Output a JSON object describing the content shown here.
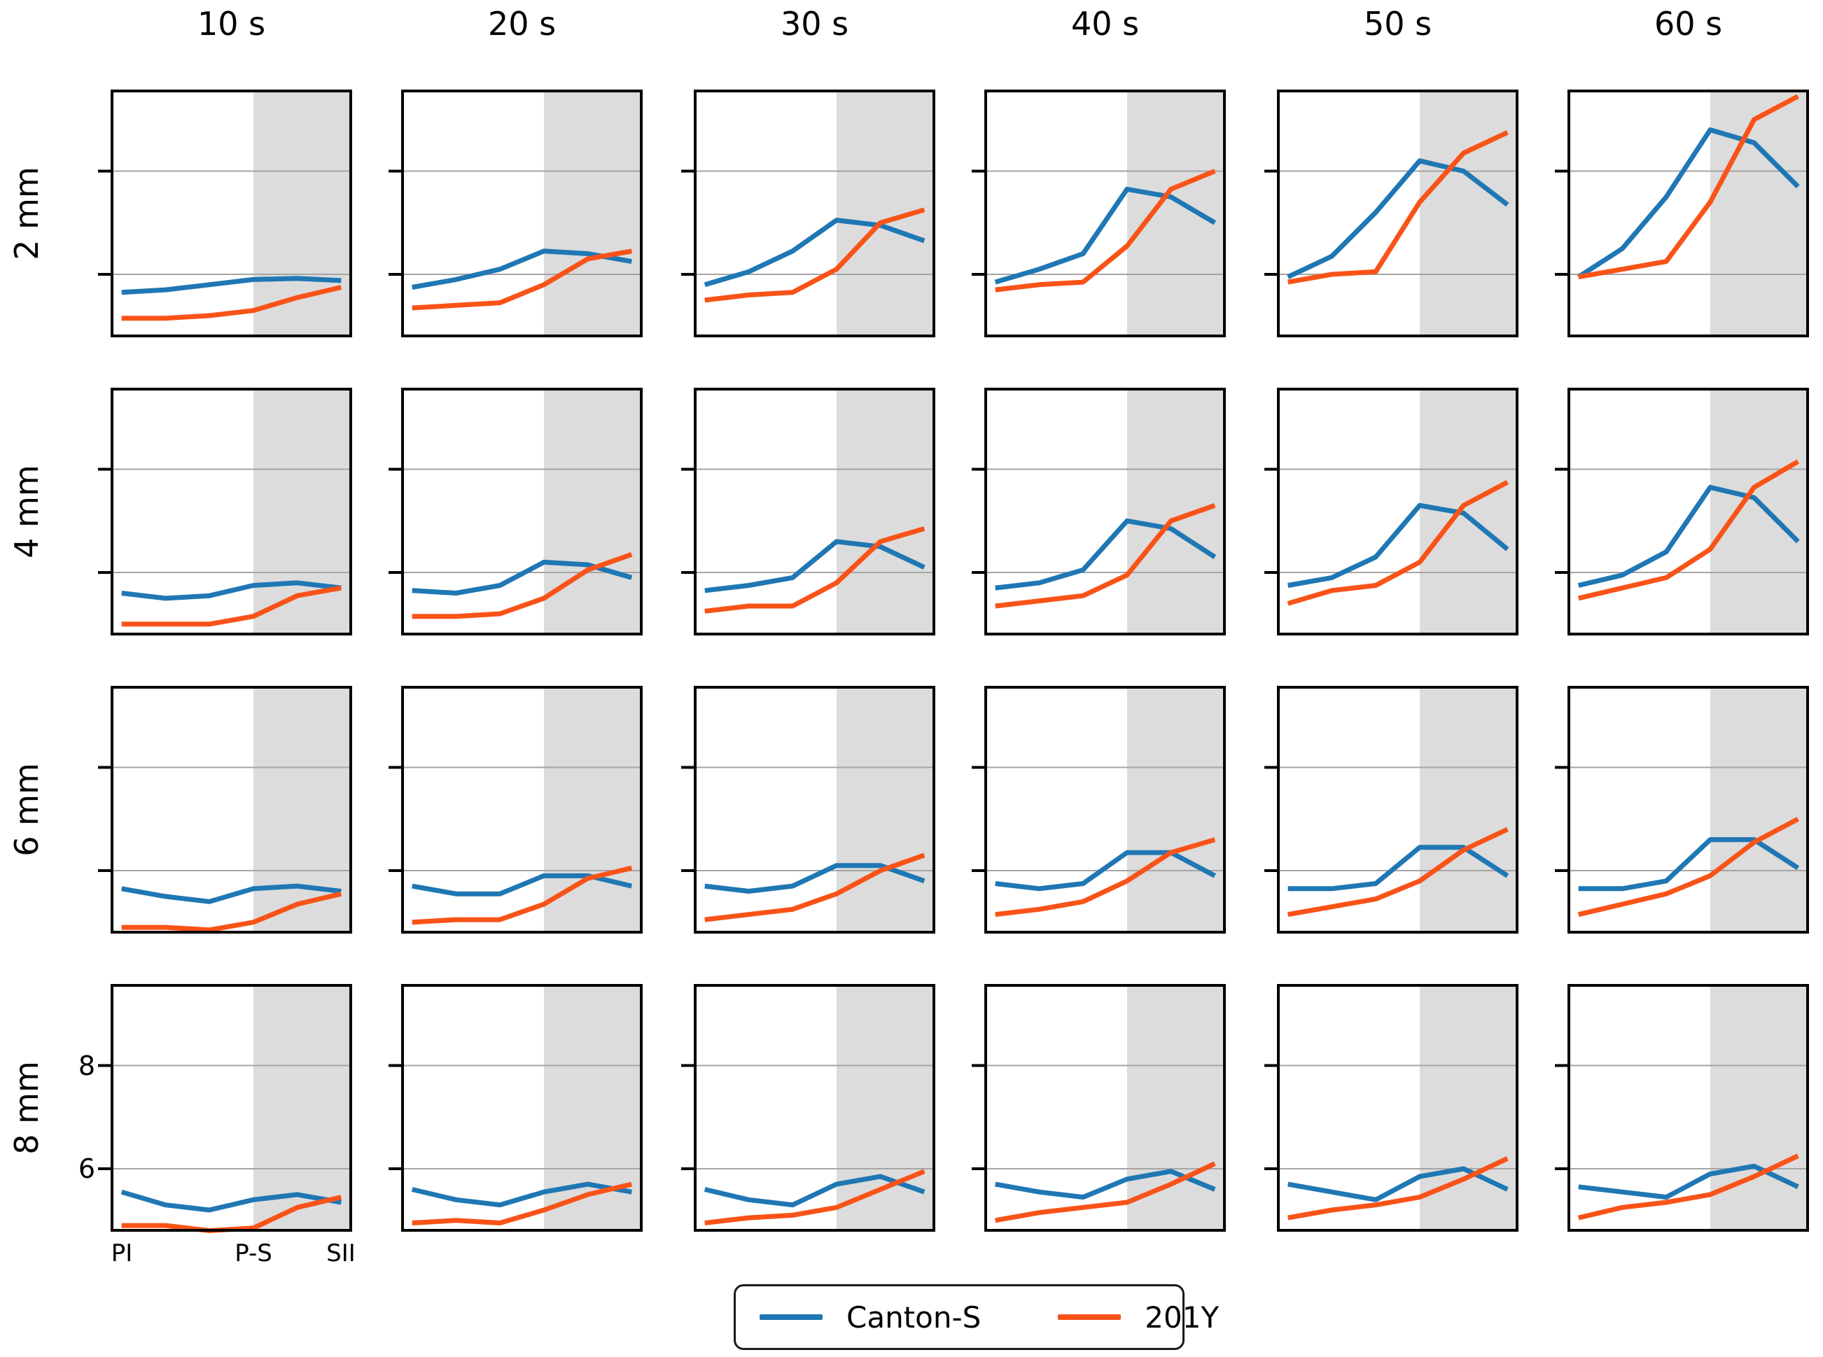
{
  "colors": {
    "canton_s": "#1f77b4",
    "y201": "#f95318",
    "shade": "#dcdcdc",
    "grid": "#a5a5a5",
    "spine": "#000000"
  },
  "legend": {
    "entries": [
      {
        "label": "Canton-S",
        "color": "#1f77b4"
      },
      {
        "label": "201Y",
        "color": "#f95318"
      }
    ]
  },
  "chart_data": {
    "type": "line",
    "facet_col_labels": [
      "10 s",
      "20 s",
      "30 s",
      "40 s",
      "50 s",
      "60 s"
    ],
    "facet_row_labels": [
      "2 mm",
      "4 mm",
      "6 mm",
      "8 mm"
    ],
    "x": [
      0,
      1,
      2,
      3,
      4,
      5
    ],
    "xlim": [
      -0.25,
      5.25
    ],
    "ylim": [
      4.78,
      9.58
    ],
    "xtick_positions": [
      0,
      3,
      5
    ],
    "xtick_labels": [
      "PI",
      "P-S",
      "SII"
    ],
    "ytick_values": [
      8,
      6
    ],
    "ytick_labels": [
      "8",
      "6"
    ],
    "shade_x": [
      3,
      5.25
    ],
    "grid": "horizontal",
    "legend_position": "bottom-center",
    "series_names": [
      "Canton-S",
      "201Y"
    ],
    "subplots": [
      {
        "row": "2 mm",
        "col": "10 s",
        "row_index": 0,
        "col_index": 0,
        "series": [
          {
            "name": "Canton-S",
            "values": [
              5.65,
              5.7,
              5.8,
              5.9,
              5.92,
              5.88
            ]
          },
          {
            "name": "201Y",
            "values": [
              5.15,
              5.15,
              5.2,
              5.3,
              5.55,
              5.75
            ]
          }
        ]
      },
      {
        "row": "2 mm",
        "col": "20 s",
        "row_index": 0,
        "col_index": 1,
        "series": [
          {
            "name": "Canton-S",
            "values": [
              5.75,
              5.9,
              6.1,
              6.45,
              6.4,
              6.25
            ]
          },
          {
            "name": "201Y",
            "values": [
              5.35,
              5.4,
              5.45,
              5.8,
              6.3,
              6.45
            ]
          }
        ]
      },
      {
        "row": "2 mm",
        "col": "30 s",
        "row_index": 0,
        "col_index": 2,
        "series": [
          {
            "name": "Canton-S",
            "values": [
              5.8,
              6.05,
              6.45,
              7.05,
              6.95,
              6.65
            ]
          },
          {
            "name": "201Y",
            "values": [
              5.5,
              5.6,
              5.65,
              6.1,
              7.0,
              7.25
            ]
          }
        ]
      },
      {
        "row": "2 mm",
        "col": "40 s",
        "row_index": 0,
        "col_index": 3,
        "series": [
          {
            "name": "Canton-S",
            "values": [
              5.85,
              6.1,
              6.4,
              7.65,
              7.5,
              7.0
            ]
          },
          {
            "name": "201Y",
            "values": [
              5.7,
              5.8,
              5.85,
              6.55,
              7.65,
              8.0
            ]
          }
        ]
      },
      {
        "row": "2 mm",
        "col": "50 s",
        "row_index": 0,
        "col_index": 4,
        "series": [
          {
            "name": "Canton-S",
            "values": [
              5.95,
              6.35,
              7.2,
              8.2,
              8.0,
              7.35
            ]
          },
          {
            "name": "201Y",
            "values": [
              5.85,
              6.0,
              6.05,
              7.4,
              8.35,
              8.75
            ]
          }
        ]
      },
      {
        "row": "2 mm",
        "col": "60 s",
        "row_index": 0,
        "col_index": 5,
        "series": [
          {
            "name": "Canton-S",
            "values": [
              5.95,
              6.5,
              7.5,
              8.8,
              8.55,
              7.7
            ]
          },
          {
            "name": "201Y",
            "values": [
              5.95,
              6.1,
              6.25,
              7.4,
              9.0,
              9.45
            ]
          }
        ]
      },
      {
        "row": "4 mm",
        "col": "10 s",
        "row_index": 1,
        "col_index": 0,
        "series": [
          {
            "name": "Canton-S",
            "values": [
              5.6,
              5.5,
              5.55,
              5.75,
              5.8,
              5.7
            ]
          },
          {
            "name": "201Y",
            "values": [
              5.0,
              5.0,
              5.0,
              5.15,
              5.55,
              5.7
            ]
          }
        ]
      },
      {
        "row": "4 mm",
        "col": "20 s",
        "row_index": 1,
        "col_index": 1,
        "series": [
          {
            "name": "Canton-S",
            "values": [
              5.65,
              5.6,
              5.75,
              6.2,
              6.15,
              5.9
            ]
          },
          {
            "name": "201Y",
            "values": [
              5.15,
              5.15,
              5.2,
              5.5,
              6.05,
              6.35
            ]
          }
        ]
      },
      {
        "row": "4 mm",
        "col": "30 s",
        "row_index": 1,
        "col_index": 2,
        "series": [
          {
            "name": "Canton-S",
            "values": [
              5.65,
              5.75,
              5.9,
              6.6,
              6.5,
              6.1
            ]
          },
          {
            "name": "201Y",
            "values": [
              5.25,
              5.35,
              5.35,
              5.8,
              6.6,
              6.85
            ]
          }
        ]
      },
      {
        "row": "4 mm",
        "col": "40 s",
        "row_index": 1,
        "col_index": 3,
        "series": [
          {
            "name": "Canton-S",
            "values": [
              5.7,
              5.8,
              6.05,
              7.0,
              6.85,
              6.3
            ]
          },
          {
            "name": "201Y",
            "values": [
              5.35,
              5.45,
              5.55,
              5.95,
              7.0,
              7.3
            ]
          }
        ]
      },
      {
        "row": "4 mm",
        "col": "50 s",
        "row_index": 1,
        "col_index": 4,
        "series": [
          {
            "name": "Canton-S",
            "values": [
              5.75,
              5.9,
              6.3,
              7.3,
              7.15,
              6.45
            ]
          },
          {
            "name": "201Y",
            "values": [
              5.4,
              5.65,
              5.75,
              6.2,
              7.3,
              7.75
            ]
          }
        ]
      },
      {
        "row": "4 mm",
        "col": "60 s",
        "row_index": 1,
        "col_index": 5,
        "series": [
          {
            "name": "Canton-S",
            "values": [
              5.75,
              5.95,
              6.4,
              7.65,
              7.45,
              6.6
            ]
          },
          {
            "name": "201Y",
            "values": [
              5.5,
              5.7,
              5.9,
              6.45,
              7.65,
              8.15
            ]
          }
        ]
      },
      {
        "row": "6 mm",
        "col": "10 s",
        "row_index": 2,
        "col_index": 0,
        "series": [
          {
            "name": "Canton-S",
            "values": [
              5.65,
              5.5,
              5.4,
              5.65,
              5.7,
              5.6
            ]
          },
          {
            "name": "201Y",
            "values": [
              4.9,
              4.9,
              4.85,
              5.0,
              5.35,
              5.55
            ]
          }
        ]
      },
      {
        "row": "6 mm",
        "col": "20 s",
        "row_index": 2,
        "col_index": 1,
        "series": [
          {
            "name": "Canton-S",
            "values": [
              5.7,
              5.55,
              5.55,
              5.9,
              5.9,
              5.7
            ]
          },
          {
            "name": "201Y",
            "values": [
              5.0,
              5.05,
              5.05,
              5.35,
              5.85,
              6.05
            ]
          }
        ]
      },
      {
        "row": "6 mm",
        "col": "30 s",
        "row_index": 2,
        "col_index": 2,
        "series": [
          {
            "name": "Canton-S",
            "values": [
              5.7,
              5.6,
              5.7,
              6.1,
              6.1,
              5.8
            ]
          },
          {
            "name": "201Y",
            "values": [
              5.05,
              5.15,
              5.25,
              5.55,
              6.0,
              6.3
            ]
          }
        ]
      },
      {
        "row": "6 mm",
        "col": "40 s",
        "row_index": 2,
        "col_index": 3,
        "series": [
          {
            "name": "Canton-S",
            "values": [
              5.75,
              5.65,
              5.75,
              6.35,
              6.35,
              5.9
            ]
          },
          {
            "name": "201Y",
            "values": [
              5.15,
              5.25,
              5.4,
              5.8,
              6.35,
              6.6
            ]
          }
        ]
      },
      {
        "row": "6 mm",
        "col": "50 s",
        "row_index": 2,
        "col_index": 4,
        "series": [
          {
            "name": "Canton-S",
            "values": [
              5.65,
              5.65,
              5.75,
              6.45,
              6.45,
              5.9
            ]
          },
          {
            "name": "201Y",
            "values": [
              5.15,
              5.3,
              5.45,
              5.8,
              6.4,
              6.8
            ]
          }
        ]
      },
      {
        "row": "6 mm",
        "col": "60 s",
        "row_index": 2,
        "col_index": 5,
        "series": [
          {
            "name": "Canton-S",
            "values": [
              5.65,
              5.65,
              5.8,
              6.6,
              6.6,
              6.05
            ]
          },
          {
            "name": "201Y",
            "values": [
              5.15,
              5.35,
              5.55,
              5.9,
              6.55,
              7.0
            ]
          }
        ]
      },
      {
        "row": "8 mm",
        "col": "10 s",
        "row_index": 3,
        "col_index": 0,
        "series": [
          {
            "name": "Canton-S",
            "values": [
              5.55,
              5.3,
              5.2,
              5.4,
              5.5,
              5.35
            ]
          },
          {
            "name": "201Y",
            "values": [
              4.9,
              4.9,
              4.8,
              4.85,
              5.25,
              5.45
            ]
          }
        ]
      },
      {
        "row": "8 mm",
        "col": "20 s",
        "row_index": 3,
        "col_index": 1,
        "series": [
          {
            "name": "Canton-S",
            "values": [
              5.6,
              5.4,
              5.3,
              5.55,
              5.7,
              5.55
            ]
          },
          {
            "name": "201Y",
            "values": [
              4.95,
              5.0,
              4.95,
              5.2,
              5.5,
              5.7
            ]
          }
        ]
      },
      {
        "row": "8 mm",
        "col": "30 s",
        "row_index": 3,
        "col_index": 2,
        "series": [
          {
            "name": "Canton-S",
            "values": [
              5.6,
              5.4,
              5.3,
              5.7,
              5.85,
              5.55
            ]
          },
          {
            "name": "201Y",
            "values": [
              4.95,
              5.05,
              5.1,
              5.25,
              5.6,
              5.95
            ]
          }
        ]
      },
      {
        "row": "8 mm",
        "col": "40 s",
        "row_index": 3,
        "col_index": 3,
        "series": [
          {
            "name": "Canton-S",
            "values": [
              5.7,
              5.55,
              5.45,
              5.8,
              5.95,
              5.6
            ]
          },
          {
            "name": "201Y",
            "values": [
              5.0,
              5.15,
              5.25,
              5.35,
              5.7,
              6.1
            ]
          }
        ]
      },
      {
        "row": "8 mm",
        "col": "50 s",
        "row_index": 3,
        "col_index": 4,
        "series": [
          {
            "name": "Canton-S",
            "values": [
              5.7,
              5.55,
              5.4,
              5.85,
              6.0,
              5.6
            ]
          },
          {
            "name": "201Y",
            "values": [
              5.05,
              5.2,
              5.3,
              5.45,
              5.8,
              6.2
            ]
          }
        ]
      },
      {
        "row": "8 mm",
        "col": "60 s",
        "row_index": 3,
        "col_index": 5,
        "series": [
          {
            "name": "Canton-S",
            "values": [
              5.65,
              5.55,
              5.45,
              5.9,
              6.05,
              5.65
            ]
          },
          {
            "name": "201Y",
            "values": [
              5.05,
              5.25,
              5.35,
              5.5,
              5.85,
              6.25
            ]
          }
        ]
      }
    ]
  }
}
